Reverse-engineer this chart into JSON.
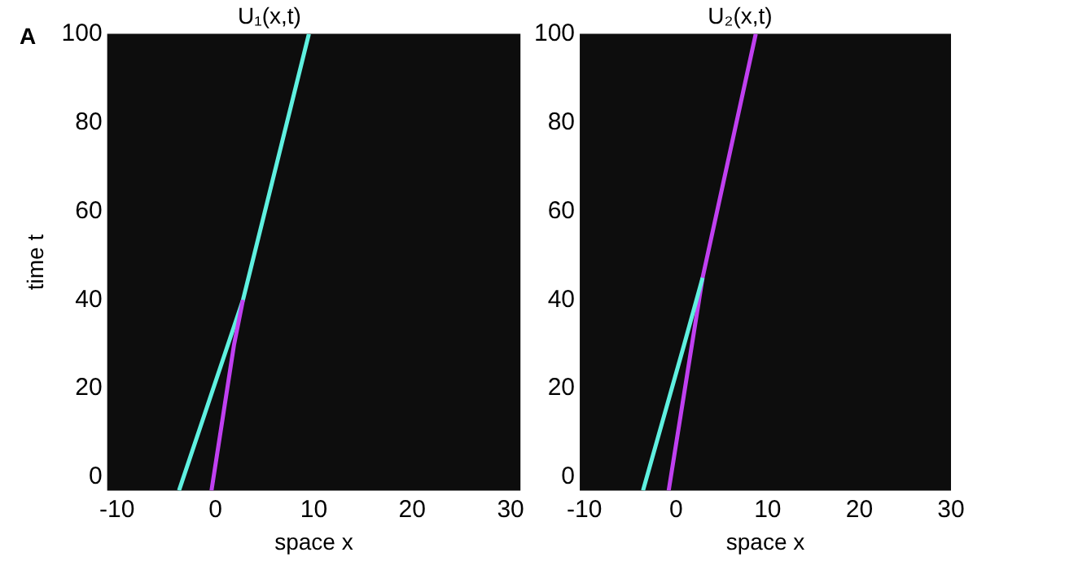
{
  "chart_data": [
    {
      "type": "line",
      "title": "U₁(x,t)",
      "xlabel": "space x",
      "ylabel": "time t",
      "annotations": [
        "A"
      ],
      "xlim": [
        -11,
        31
      ],
      "ylim": [
        -3,
        100
      ],
      "xticks": [
        -10,
        0,
        10,
        20,
        30
      ],
      "yticks": [
        0,
        20,
        40,
        60,
        80,
        100
      ],
      "grid": false,
      "legend": false,
      "marker": "none",
      "series": [
        {
          "color": "#c040f0",
          "x": [
            -0.4,
            1.9,
            2.8
          ],
          "values": [
            -3,
            30,
            40
          ]
        },
        {
          "color": "#5ff0e0",
          "x": [
            -3.7,
            2.8,
            9.5
          ],
          "values": [
            -3,
            40,
            100
          ]
        }
      ]
    },
    {
      "type": "line",
      "title": "U₂(x,t)",
      "xlabel": "space x",
      "xlim": [
        -10.5,
        30
      ],
      "ylim": [
        -3,
        100
      ],
      "xticks": [
        -10,
        0,
        10,
        20,
        30
      ],
      "yticks": [
        0,
        20,
        40,
        60,
        80,
        100
      ],
      "grid": false,
      "legend": false,
      "marker": "none",
      "series": [
        {
          "color": "#5ff0e0",
          "x": [
            -3.6,
            0.9,
            2.9
          ],
          "values": [
            -3,
            30,
            45
          ]
        },
        {
          "color": "#c040f0",
          "x": [
            -0.8,
            2.9,
            8.7
          ],
          "values": [
            -3,
            45,
            100
          ]
        }
      ]
    }
  ]
}
